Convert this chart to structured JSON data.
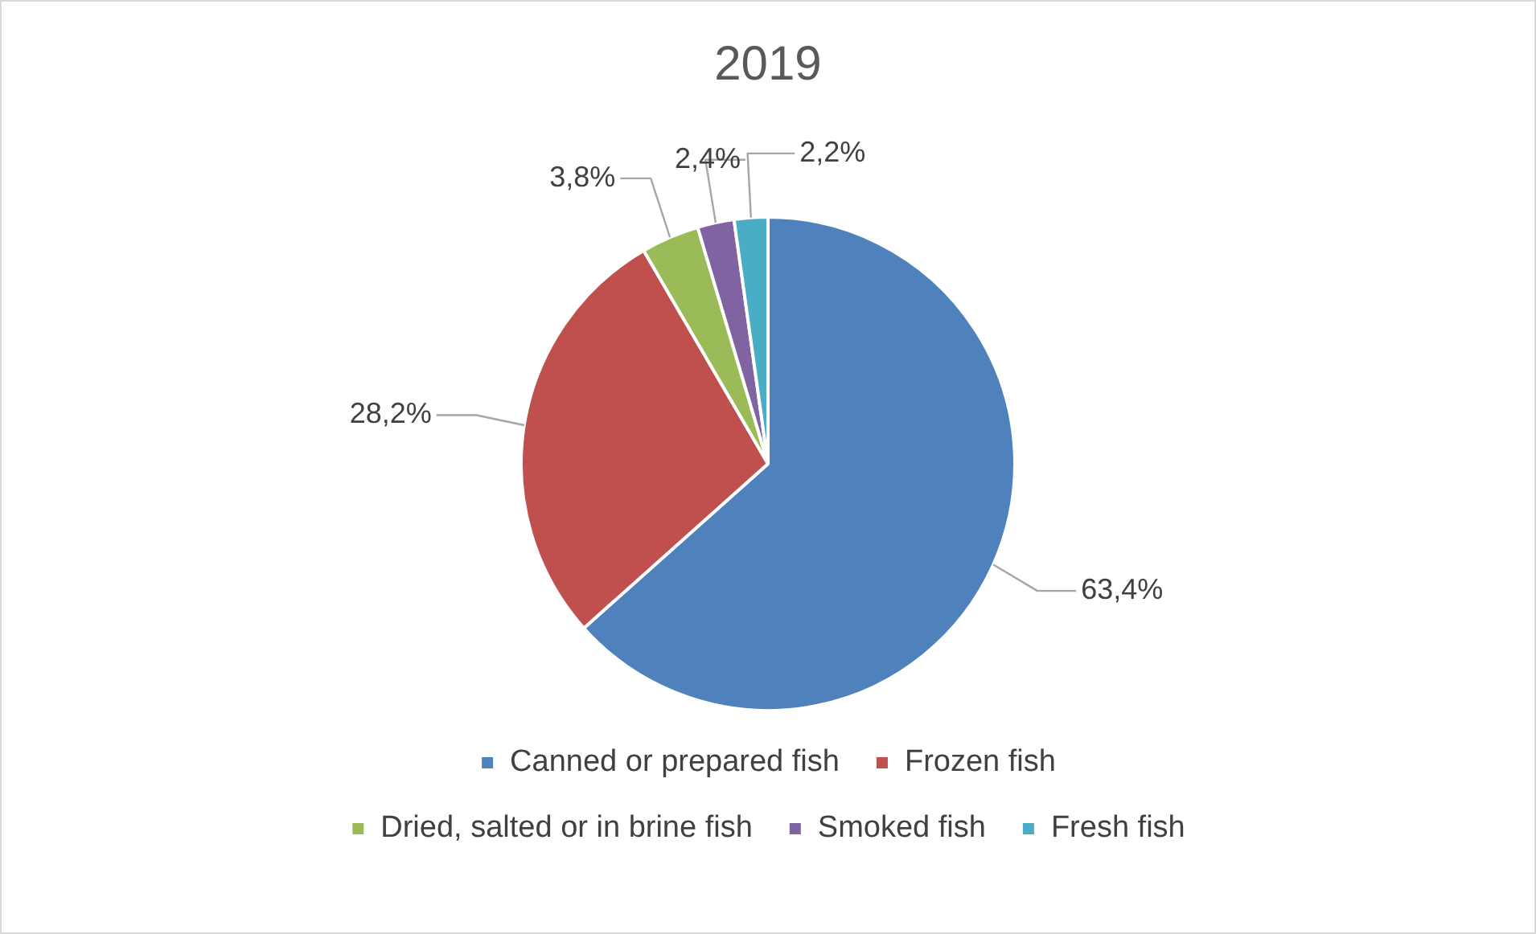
{
  "chart_data": {
    "type": "pie",
    "title": "2019",
    "categories": [
      "Canned or prepared fish",
      "Frozen fish",
      "Dried, salted or in brine fish",
      "Smoked fish",
      "Fresh fish"
    ],
    "values": [
      63.4,
      28.2,
      3.8,
      2.4,
      2.2
    ],
    "colors": [
      "#4f81bd",
      "#c0504d",
      "#9bbb59",
      "#8064a2",
      "#4bacc6"
    ],
    "value_labels": [
      "63,4%",
      "28,2%",
      "3,8%",
      "2,4%",
      "2,2%"
    ],
    "legend": "bottom"
  }
}
